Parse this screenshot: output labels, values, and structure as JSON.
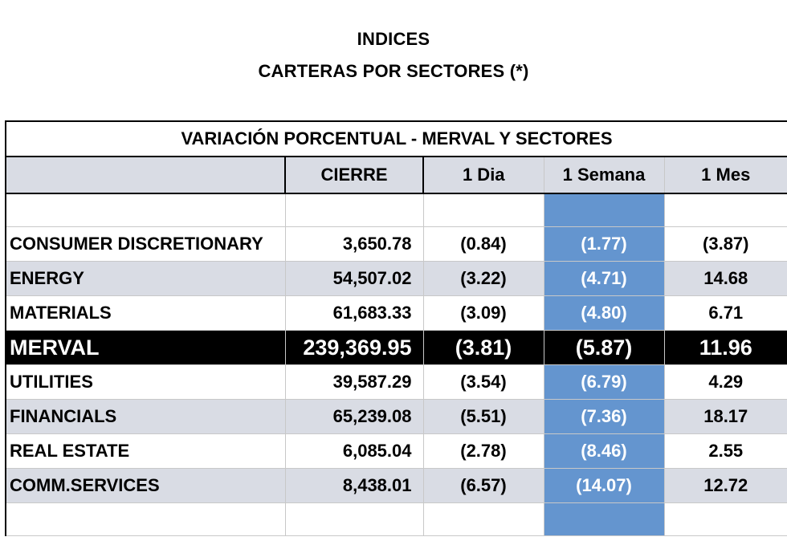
{
  "title_line1": "INDICES",
  "title_line2": "CARTERAS POR SECTORES (*)",
  "table": {
    "caption": "VARIACIÓN PORCENTUAL - MERVAL Y SECTORES",
    "columns": [
      "",
      "CIERRE",
      "1 Dia",
      "1 Semana",
      "1 Mes"
    ],
    "rows": [
      {
        "name": "CONSUMER DISCRETIONARY",
        "cierre": "3,650.78",
        "dia": "(0.84)",
        "semana": "(1.77)",
        "mes": "(3.87)",
        "style": "plain"
      },
      {
        "name": "ENERGY",
        "cierre": "54,507.02",
        "dia": "(3.22)",
        "semana": "(4.71)",
        "mes": "14.68",
        "style": "shaded"
      },
      {
        "name": "MATERIALS",
        "cierre": "61,683.33",
        "dia": "(3.09)",
        "semana": "(4.80)",
        "mes": "6.71",
        "style": "plain"
      },
      {
        "name": "MERVAL",
        "cierre": "239,369.95",
        "dia": "(3.81)",
        "semana": "(5.87)",
        "mes": "11.96",
        "style": "merval"
      },
      {
        "name": "UTILITIES",
        "cierre": "39,587.29",
        "dia": "(3.54)",
        "semana": "(6.79)",
        "mes": "4.29",
        "style": "plain"
      },
      {
        "name": "FINANCIALS",
        "cierre": "65,239.08",
        "dia": "(5.51)",
        "semana": "(7.36)",
        "mes": "18.17",
        "style": "shaded"
      },
      {
        "name": "REAL ESTATE",
        "cierre": "6,085.04",
        "dia": "(2.78)",
        "semana": "(8.46)",
        "mes": "2.55",
        "style": "plain"
      },
      {
        "name": "COMM.SERVICES",
        "cierre": "8,438.01",
        "dia": "(6.57)",
        "semana": "(14.07)",
        "mes": "12.72",
        "style": "shaded"
      }
    ]
  },
  "colors": {
    "header_fill": "#d9dce4",
    "week_highlight": "#6495cf",
    "merval_fill": "#000000"
  }
}
